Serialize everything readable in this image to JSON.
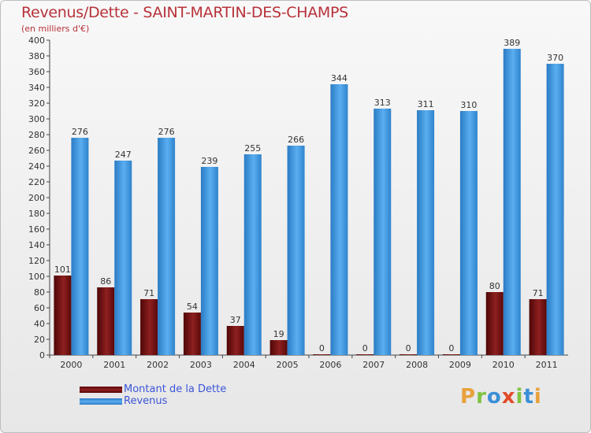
{
  "chart_data": {
    "type": "bar",
    "title": "Revenus/Dette - SAINT-MARTIN-DES-CHAMPS",
    "subtitle": "(en milliers d'€)",
    "categories": [
      "2000",
      "2001",
      "2002",
      "2003",
      "2004",
      "2005",
      "2006",
      "2007",
      "2008",
      "2009",
      "2010",
      "2011"
    ],
    "series": [
      {
        "name": "Montant de la Dette",
        "color": "#7a1515",
        "values": [
          101,
          86,
          71,
          54,
          37,
          19,
          0,
          0,
          0,
          0,
          80,
          71
        ]
      },
      {
        "name": "Revenus",
        "color": "#3e96dd",
        "values": [
          276,
          247,
          276,
          239,
          255,
          266,
          344,
          313,
          311,
          310,
          389,
          370
        ]
      }
    ],
    "ylim": [
      0,
      400
    ],
    "ytick_step": 20,
    "grid": false,
    "legend_position": "bottom-left"
  },
  "logo": {
    "text": "Proxiti"
  }
}
